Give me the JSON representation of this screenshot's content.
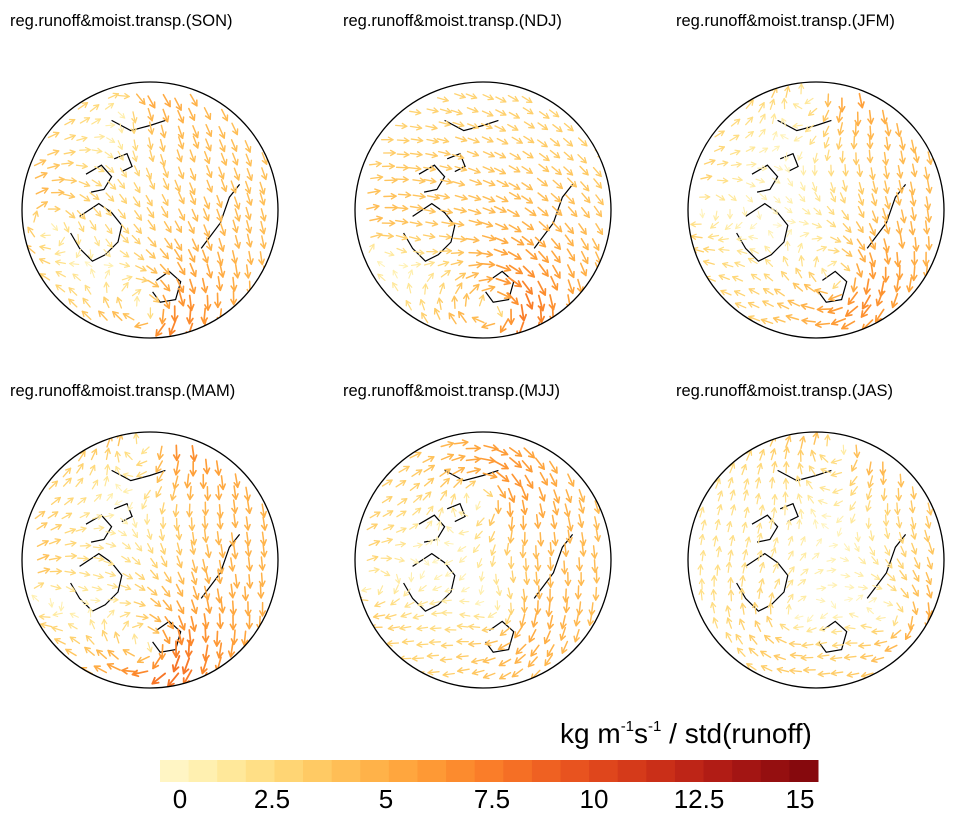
{
  "panels": [
    {
      "id": "son",
      "title": "reg.runoff&moist.transp.(SON)"
    },
    {
      "id": "ndj",
      "title": "reg.runoff&moist.transp.(NDJ)"
    },
    {
      "id": "jfm",
      "title": "reg.runoff&moist.transp.(JFM)"
    },
    {
      "id": "mam",
      "title": "reg.runoff&moist.transp.(MAM)"
    },
    {
      "id": "mjj",
      "title": "reg.runoff&moist.transp.(MJJ)"
    },
    {
      "id": "jas",
      "title": "reg.runoff&moist.transp.(JAS)"
    }
  ],
  "colorbar": {
    "units_base": "kg m",
    "units_sup1": "-1",
    "units_mid": "s",
    "units_sup2": "-1",
    "units_tail": " / std(runoff)",
    "range": [
      0,
      15
    ],
    "ticks": [
      "0",
      "2.5",
      "5",
      "7.5",
      "10",
      "12.5",
      "15"
    ],
    "colors": [
      "#fff5c4",
      "#fff0b0",
      "#ffe89a",
      "#ffdf86",
      "#ffd574",
      "#ffca64",
      "#ffbe56",
      "#ffb249",
      "#ffa63e",
      "#fe9935",
      "#fc8b2e",
      "#fa7d29",
      "#f56f25",
      "#ef6122",
      "#e8531f",
      "#df461c",
      "#d53a1a",
      "#ca2f18",
      "#be2517",
      "#b11c15",
      "#a31513",
      "#950f10",
      "#86090d"
    ]
  },
  "colors": {
    "low": "#fde6a0",
    "mid": "#f6a13c",
    "high": "#a3161a",
    "coast": "#000000"
  }
}
